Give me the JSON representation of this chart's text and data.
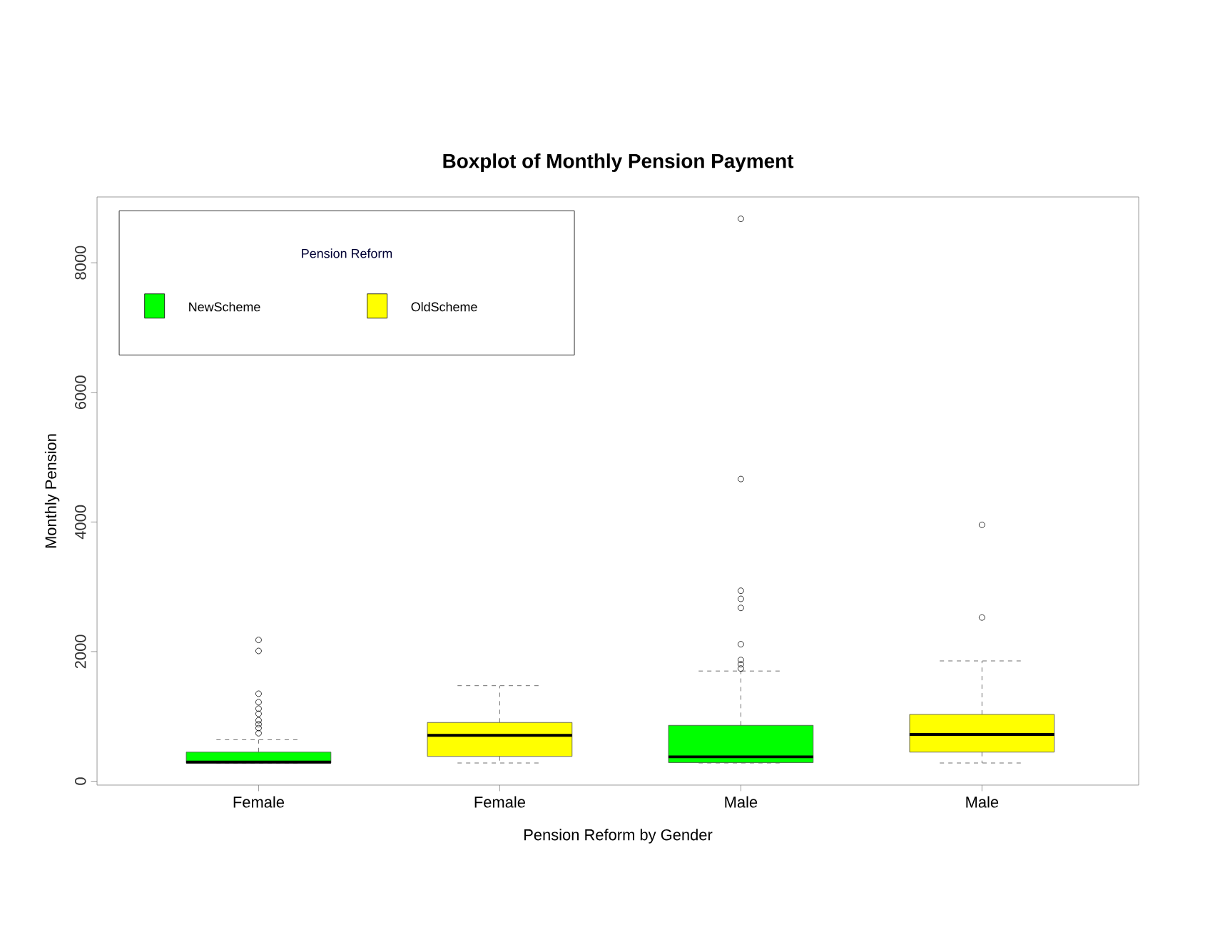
{
  "chart_data": {
    "type": "box",
    "title": "Boxplot of Monthly Pension Payment",
    "xlabel": "Pension Reform by Gender",
    "ylabel": "Monthly Pension",
    "categories": [
      "Female",
      "Female",
      "Male",
      "Male"
    ],
    "legend_title": "Pension Reform",
    "legend": "top left",
    "ylim": [
      -60,
      9015
    ],
    "yticks": [
      0,
      2000,
      4000,
      6000,
      8000
    ],
    "series": [
      {
        "name": "NewScheme",
        "color": "#00ff00",
        "boxes": [
          {
            "low": 281,
            "q1": 281,
            "median": 294,
            "q3": 449,
            "high": 640,
            "outliers": [
              2180,
              2010,
              1350,
              1220,
              1120,
              1040,
              940,
              880,
              820,
              740
            ]
          },
          null,
          {
            "low": 281,
            "q1": 287,
            "median": 376,
            "q3": 862,
            "high": 1700,
            "outliers": [
              8678,
              4663,
              2939,
              2814,
              2674,
              2114,
              1871,
              1805,
              1739
            ]
          },
          null
        ]
      },
      {
        "name": "OldScheme",
        "color": "#ffff00",
        "boxes": [
          null,
          {
            "low": 281,
            "q1": 383,
            "median": 707,
            "q3": 906,
            "high": 1474
          },
          null,
          {
            "low": 281,
            "q1": 449,
            "median": 722,
            "q3": 1031,
            "high": 1856,
            "outliers": [
              3956,
              2526
            ]
          }
        ]
      }
    ]
  }
}
